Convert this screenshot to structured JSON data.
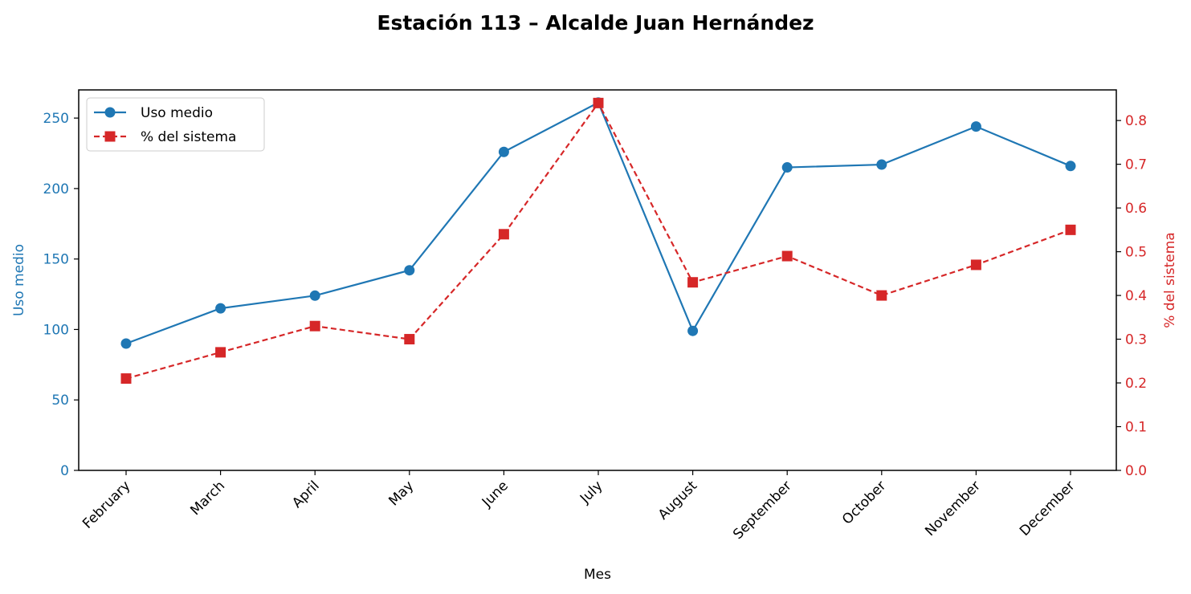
{
  "chart_data": {
    "type": "line",
    "title": "Estación 113 – Alcalde Juan Hernández",
    "xlabel": "Mes",
    "ylabel_left": "Uso medio",
    "ylabel_right": "% del sistema",
    "categories": [
      "February",
      "March",
      "April",
      "May",
      "June",
      "July",
      "August",
      "September",
      "October",
      "November",
      "December"
    ],
    "ylim_left": [
      0,
      270
    ],
    "ylim_right": [
      0,
      0.87
    ],
    "yticks_left": [
      "0",
      "50",
      "100",
      "150",
      "200",
      "250"
    ],
    "yticks_right": [
      "0.0",
      "0.1",
      "0.2",
      "0.3",
      "0.4",
      "0.5",
      "0.6",
      "0.7",
      "0.8"
    ],
    "legend_position": "upper-left",
    "grid": false,
    "series": [
      {
        "name": "Uso medio",
        "axis": "left",
        "color": "#1f77b4",
        "marker": "circle",
        "linestyle": "solid",
        "values": [
          90,
          115,
          124,
          142,
          226,
          261,
          99,
          215,
          217,
          244,
          216
        ]
      },
      {
        "name": "% del sistema",
        "axis": "right",
        "color": "#d62728",
        "marker": "square",
        "linestyle": "dashed",
        "values": [
          0.21,
          0.27,
          0.33,
          0.3,
          0.54,
          0.84,
          0.43,
          0.49,
          0.4,
          0.47,
          0.55
        ]
      }
    ]
  }
}
